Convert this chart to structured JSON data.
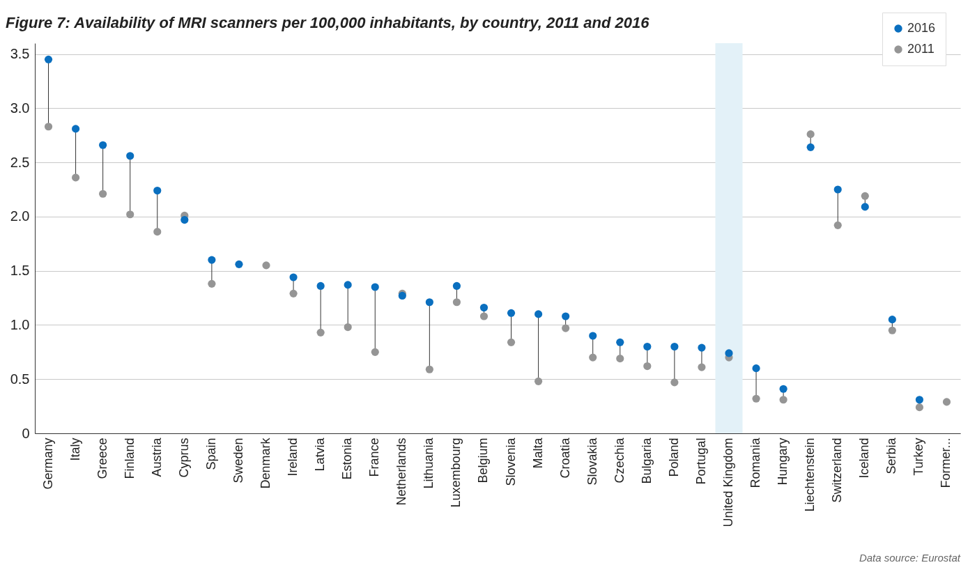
{
  "chart_data": {
    "type": "scatter",
    "title": "Figure 7: Availability of MRI scanners per 100,000 inhabitants, by country, 2011 and 2016",
    "categories": [
      "Germany",
      "Italy",
      "Greece",
      "Finland",
      "Austria",
      "Cyprus",
      "Spain",
      "Sweden",
      "Denmark",
      "Ireland",
      "Latvia",
      "Estonia",
      "France",
      "Netherlands",
      "Lithuania",
      "Luxembourg",
      "Belgium",
      "Slovenia",
      "Malta",
      "Croatia",
      "Slovakia",
      "Czechia",
      "Bulgaria",
      "Poland",
      "Portugal",
      "United Kingdom",
      "Romania",
      "Hungary",
      "Liechtenstein",
      "Switzerland",
      "Iceland",
      "Serbia",
      "Turkey",
      "Former..."
    ],
    "series": [
      {
        "name": "2016",
        "color": "#0a6fbf",
        "values": [
          3.45,
          2.81,
          2.66,
          2.56,
          2.24,
          1.97,
          1.6,
          1.56,
          null,
          1.44,
          1.36,
          1.37,
          1.35,
          1.27,
          1.21,
          1.36,
          1.16,
          1.11,
          1.1,
          1.08,
          0.9,
          0.84,
          0.8,
          0.8,
          0.79,
          0.74,
          0.6,
          0.41,
          2.64,
          2.25,
          2.09,
          1.05,
          0.31,
          null
        ]
      },
      {
        "name": "2011",
        "color": "#959595",
        "values": [
          2.83,
          2.36,
          2.21,
          2.02,
          1.86,
          2.01,
          1.38,
          null,
          1.55,
          1.29,
          0.93,
          0.98,
          0.75,
          1.29,
          0.59,
          1.21,
          1.08,
          0.84,
          0.48,
          0.97,
          0.7,
          0.69,
          0.62,
          0.47,
          0.61,
          0.7,
          0.32,
          0.31,
          2.76,
          1.92,
          2.19,
          0.95,
          0.24,
          0.29
        ]
      }
    ],
    "ylim": [
      0,
      3.6
    ],
    "yticks": [
      0,
      0.5,
      {
        "value": 1,
        "label": "1.0"
      },
      1.5,
      {
        "value": 2,
        "label": "2.0"
      },
      2.5,
      {
        "value": 3,
        "label": "3.0"
      },
      3.5
    ],
    "grid": "y",
    "legend": "top right",
    "marker": "circle",
    "bands": [
      {
        "axis": "x",
        "from": "United Kingdom",
        "to": "United Kingdom",
        "color": "#e3f1f8"
      }
    ],
    "annotations": [
      "Data source: Eurostat"
    ]
  }
}
